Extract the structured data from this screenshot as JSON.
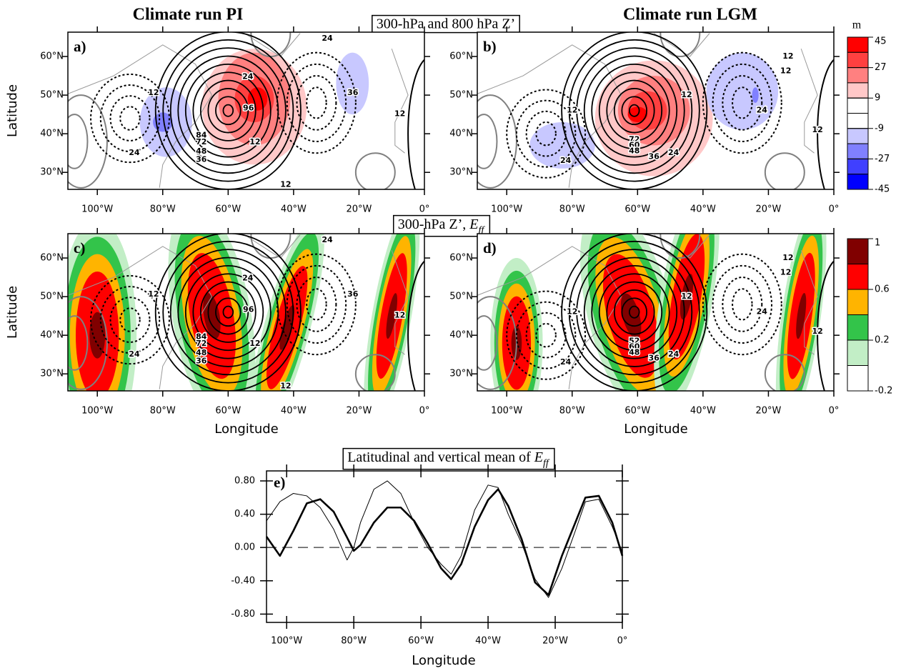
{
  "header": {
    "left_title": "Climate run PI",
    "right_title": "Climate run LGM"
  },
  "row_titles": [
    {
      "text": "300-hPa and 800 hPa Z’"
    },
    {
      "text": "300-hPa Z’, ",
      "symbol": "E",
      "subscript": "ff"
    }
  ],
  "axis_labels": {
    "latitude": "Latitude",
    "longitude": "Longitude"
  },
  "map_axes": {
    "latlim": [
      25.6,
      66.3
    ],
    "lonlim": [
      -109,
      0
    ],
    "lat_ticks": [
      {
        "value": 60,
        "label": "60°N"
      },
      {
        "value": 50,
        "label": "50°N"
      },
      {
        "value": 40,
        "label": "40°N"
      },
      {
        "value": 30,
        "label": "30°N"
      }
    ],
    "lon_ticks": [
      {
        "value": -100,
        "label": "100°W"
      },
      {
        "value": -80,
        "label": "80°W"
      },
      {
        "value": -60,
        "label": "60°W"
      },
      {
        "value": -40,
        "label": "40°W"
      },
      {
        "value": -20,
        "label": "20°W"
      },
      {
        "value": 0,
        "label": "0°"
      }
    ]
  },
  "colorbars": [
    {
      "unit": "m",
      "lim": [
        -45,
        45
      ],
      "ticks": [
        45,
        27,
        9,
        -9,
        -27,
        -45
      ],
      "colors": [
        "#ff0000",
        "#ff4040",
        "#ff8080",
        "#ffc8c8",
        "#ffffff",
        "#ffffff",
        "#c8c8ff",
        "#8080ff",
        "#4040ff",
        "#0000ff"
      ]
    },
    {
      "lim": [
        -0.2,
        1
      ],
      "ticks": [
        1,
        0.6,
        0.2,
        -0.2
      ],
      "colors": [
        "#800000",
        "#ff0000",
        "#ffb400",
        "#33c44a",
        "#c2eec6",
        "#ffffff"
      ]
    }
  ],
  "maps": [
    {
      "label": "a)",
      "contour_labels": [
        24,
        12,
        96,
        84,
        72,
        48,
        36,
        24,
        12,
        36,
        24,
        12,
        12
      ]
    },
    {
      "label": "b)",
      "contour_labels": [
        12,
        24,
        72,
        60,
        48,
        36,
        24,
        12,
        24,
        12,
        12,
        12
      ]
    },
    {
      "label": "c)",
      "contour_labels": [
        24,
        12,
        96,
        84,
        72,
        48,
        36,
        24,
        12,
        36,
        24,
        12,
        12
      ]
    },
    {
      "label": "d)",
      "contour_labels": [
        12,
        24,
        52,
        60,
        48,
        36,
        24,
        12,
        24,
        12,
        12,
        12
      ]
    }
  ],
  "chart_data": {
    "type": "line",
    "title": "Latitudinal and vertical mean of ",
    "title_symbol": "E",
    "title_subscript": "ff",
    "panel_label": "e)",
    "x_label": "Longitude",
    "x": [
      -106,
      -102,
      -98,
      -94,
      -90,
      -86,
      -82,
      -80,
      -78,
      -74,
      -70,
      -66,
      -62,
      -58,
      -54,
      -51,
      -48,
      -44,
      -40,
      -37,
      -34,
      -30,
      -26,
      -22,
      -18,
      -14,
      -11,
      -7,
      -3,
      0
    ],
    "series": [
      {
        "color": "#000000",
        "width": 2.6,
        "values": [
          0.13,
          -0.1,
          0.2,
          0.53,
          0.58,
          0.43,
          0.12,
          -0.04,
          0.03,
          0.3,
          0.48,
          0.48,
          0.32,
          0.05,
          -0.25,
          -0.38,
          -0.2,
          0.25,
          0.57,
          0.7,
          0.5,
          0.1,
          -0.42,
          -0.57,
          -0.1,
          0.3,
          0.6,
          0.62,
          0.3,
          -0.1
        ]
      },
      {
        "color": "#000000",
        "width": 1,
        "values": [
          0.32,
          0.55,
          0.65,
          0.62,
          0.48,
          0.22,
          -0.15,
          0.0,
          0.3,
          0.7,
          0.8,
          0.65,
          0.3,
          0.0,
          -0.2,
          -0.32,
          -0.1,
          0.45,
          0.75,
          0.72,
          0.4,
          0.05,
          -0.38,
          -0.6,
          -0.25,
          0.2,
          0.55,
          0.58,
          0.25,
          -0.05
        ]
      }
    ],
    "xlim": [
      -106,
      0
    ],
    "ylim": [
      -0.9,
      0.92
    ],
    "xticks": [
      {
        "value": -100,
        "label": "100°W"
      },
      {
        "value": -80,
        "label": "80°W"
      },
      {
        "value": -60,
        "label": "60°W"
      },
      {
        "value": -40,
        "label": "40°W"
      },
      {
        "value": -20,
        "label": "20°W"
      },
      {
        "value": 0,
        "label": "0°"
      }
    ],
    "yticks": [
      {
        "value": 0.8,
        "label": "0.80"
      },
      {
        "value": 0.4,
        "label": "0.40"
      },
      {
        "value": 0,
        "label": "0.00"
      },
      {
        "value": -0.4,
        "label": "-0.40"
      },
      {
        "value": -0.8,
        "label": "-0.80"
      }
    ],
    "zero_line": true
  }
}
